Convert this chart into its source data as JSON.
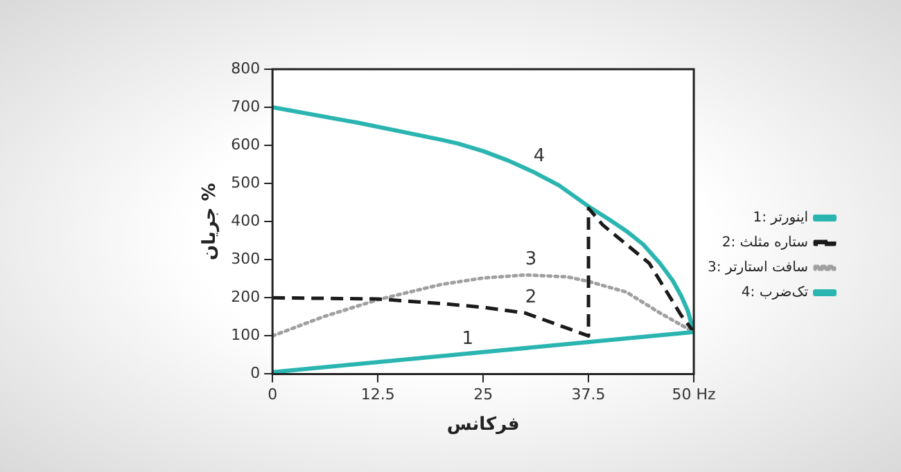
{
  "chart_data": {
    "type": "line",
    "xlabel": "فرکانس",
    "ylabel": "جریان %",
    "xlim": [
      0,
      50
    ],
    "xticks": [
      0,
      12.5,
      25,
      37.5,
      {
        "value": 50,
        "label": "50 Hz"
      }
    ],
    "ylim": [
      0,
      800
    ],
    "yticks": [
      0,
      100,
      200,
      300,
      400,
      500,
      600,
      700,
      800
    ],
    "grid": false,
    "legend": "right",
    "marker": "none",
    "series": [
      {
        "name": "1: اینورتر",
        "color": "#2bb5b0",
        "line_style": "solid",
        "x": [
          0,
          50
        ],
        "values": [
          5,
          110
        ]
      },
      {
        "name": "2: ستاره مثلث",
        "color": "#1a1a1a",
        "line_style": "dashed",
        "x": [
          0,
          12.5,
          20,
          25,
          30,
          37.5,
          37.5,
          39.2,
          44.7,
          48.5,
          50
        ],
        "values": [
          200,
          197,
          185,
          175,
          160,
          100,
          435,
          391,
          291,
          154,
          110
        ]
      },
      {
        "name": "3: سافت استارتر",
        "color": "#a0a0a0",
        "line_style": "dotted",
        "x": [
          0,
          6,
          12.5,
          20,
          25,
          30,
          35,
          37.5,
          42,
          46,
          50
        ],
        "values": [
          100,
          150,
          195,
          235,
          252,
          260,
          255,
          243,
          215,
          160,
          110
        ]
      },
      {
        "name": "4: تک‌ضرب",
        "color": "#2bb5b0",
        "line_style": "solid",
        "x": [
          0,
          10,
          20,
          22,
          25,
          28,
          31,
          34,
          37.5,
          40,
          42,
          44,
          46,
          47.5,
          48.5,
          49.3,
          50
        ],
        "values": [
          700,
          660,
          615,
          605,
          585,
          560,
          530,
          495,
          440,
          405,
          375,
          340,
          290,
          245,
          205,
          165,
          110
        ]
      }
    ],
    "annotations": [
      {
        "text": "1",
        "x": 22.5,
        "y": 52
      },
      {
        "text": "2",
        "x": 30,
        "y": 160
      },
      {
        "text": "3",
        "x": 30,
        "y": 260
      },
      {
        "text": "4",
        "x": 31,
        "y": 530
      }
    ]
  }
}
